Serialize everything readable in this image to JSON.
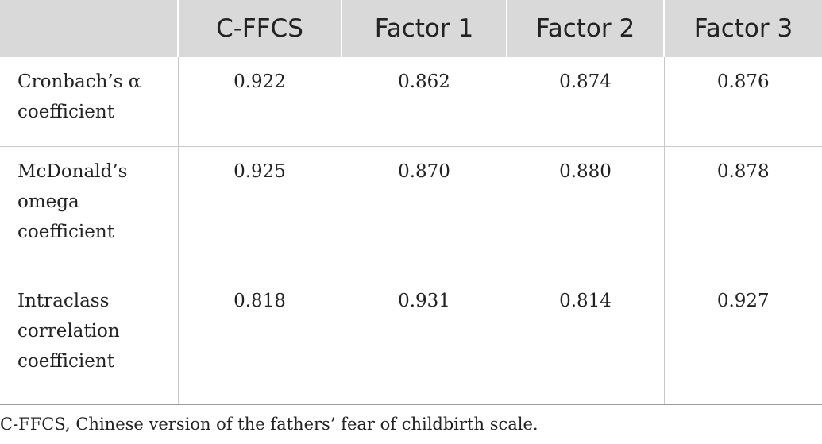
{
  "table": {
    "headers": [
      "",
      "C-FFCS",
      "Factor 1",
      "Factor 2",
      "Factor 3"
    ],
    "rows": [
      {
        "label": "Cronbach’s α coefficient",
        "values": [
          "0.922",
          "0.862",
          "0.874",
          "0.876"
        ]
      },
      {
        "label": "McDonald’s omega coefficient",
        "values": [
          "0.925",
          "0.870",
          "0.880",
          "0.878"
        ]
      },
      {
        "label": "Intraclass correlation coefficient",
        "values": [
          "0.818",
          "0.931",
          "0.814",
          "0.927"
        ]
      }
    ]
  },
  "footnote": "C-FFCS, Chinese version of the fathers’ fear of childbirth scale."
}
